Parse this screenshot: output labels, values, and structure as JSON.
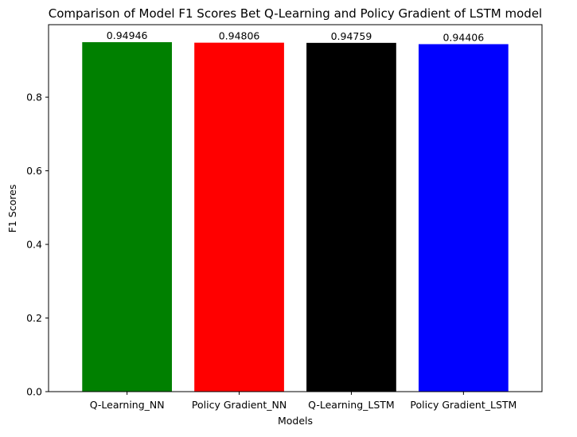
{
  "chart_data": {
    "type": "bar",
    "title": "Comparison of Model F1 Scores Bet Q-Learning and Policy Gradient of LSTM model",
    "xlabel": "Models",
    "ylabel": "F1 Scores",
    "categories": [
      "Q-Learning_NN",
      "Policy Gradient_NN",
      "Q-Learning_LSTM",
      "Policy Gradient_LSTM"
    ],
    "values": [
      0.94946,
      0.94806,
      0.94759,
      0.94406
    ],
    "value_labels": [
      "0.94946",
      "0.94806",
      "0.94759",
      "0.94406"
    ],
    "colors": [
      "#008000",
      "#ff0000",
      "#000000",
      "#0000ff"
    ],
    "ylim": [
      0,
      0.997
    ],
    "yticks": [
      0.0,
      0.2,
      0.4,
      0.6,
      0.8
    ],
    "ytick_labels": [
      "0.0",
      "0.2",
      "0.4",
      "0.6",
      "0.8"
    ],
    "grid": false,
    "legend": "none"
  }
}
